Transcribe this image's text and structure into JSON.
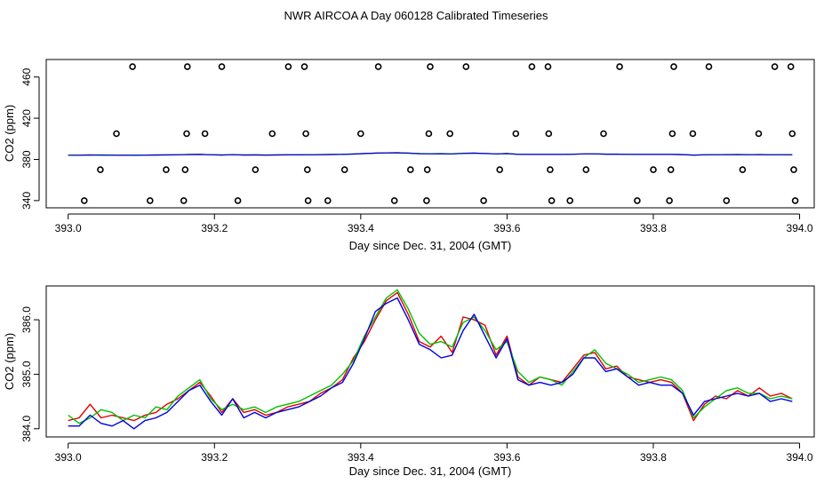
{
  "page_title": "NWR AIRCOA A  Day 060128  Calibrated Timeseries",
  "chart_data": [
    {
      "type": "scatter",
      "title": "",
      "xlabel": "Day since Dec. 31, 2004 (GMT)",
      "ylabel": "CO2 (ppm)",
      "xlim": [
        392.97,
        394.02
      ],
      "ylim": [
        333,
        477
      ],
      "x_ticks": [
        393.0,
        393.2,
        393.4,
        393.6,
        393.8,
        394.0
      ],
      "x_tick_labels": [
        "393.0",
        "393.2",
        "393.4",
        "393.6",
        "393.8",
        "394.0"
      ],
      "y_ticks": [
        340,
        380,
        420,
        460
      ],
      "y_tick_labels": [
        "340",
        "380",
        "420",
        "460"
      ],
      "points": [
        [
          393.022,
          340
        ],
        [
          393.044,
          370
        ],
        [
          393.066,
          405
        ],
        [
          393.088,
          470
        ],
        [
          393.112,
          340
        ],
        [
          393.134,
          370
        ],
        [
          393.158,
          340
        ],
        [
          393.16,
          370
        ],
        [
          393.162,
          405
        ],
        [
          393.163,
          470
        ],
        [
          393.187,
          405
        ],
        [
          393.21,
          470
        ],
        [
          393.232,
          340
        ],
        [
          393.256,
          370
        ],
        [
          393.279,
          405
        ],
        [
          393.301,
          470
        ],
        [
          393.323,
          470
        ],
        [
          393.325,
          405
        ],
        [
          393.327,
          370
        ],
        [
          393.328,
          340
        ],
        [
          393.355,
          340
        ],
        [
          393.378,
          370
        ],
        [
          393.4,
          405
        ],
        [
          393.424,
          470
        ],
        [
          393.446,
          340
        ],
        [
          393.468,
          370
        ],
        [
          393.49,
          340
        ],
        [
          393.491,
          370
        ],
        [
          393.493,
          405
        ],
        [
          393.495,
          470
        ],
        [
          393.522,
          405
        ],
        [
          393.544,
          470
        ],
        [
          393.568,
          340
        ],
        [
          393.59,
          370
        ],
        [
          393.612,
          405
        ],
        [
          393.634,
          470
        ],
        [
          393.656,
          470
        ],
        [
          393.657,
          405
        ],
        [
          393.659,
          370
        ],
        [
          393.661,
          340
        ],
        [
          393.686,
          340
        ],
        [
          393.708,
          370
        ],
        [
          393.732,
          405
        ],
        [
          393.754,
          470
        ],
        [
          393.778,
          340
        ],
        [
          393.8,
          370
        ],
        [
          393.822,
          340
        ],
        [
          393.824,
          370
        ],
        [
          393.826,
          405
        ],
        [
          393.828,
          470
        ],
        [
          393.854,
          405
        ],
        [
          393.876,
          470
        ],
        [
          393.9,
          340
        ],
        [
          393.922,
          370
        ],
        [
          393.944,
          405
        ],
        [
          393.966,
          470
        ],
        [
          393.988,
          470
        ],
        [
          393.99,
          405
        ],
        [
          393.992,
          370
        ],
        [
          393.994,
          340
        ]
      ],
      "series": [
        {
          "name": "red",
          "color": "#e00000"
        },
        {
          "name": "green",
          "color": "#00c000"
        },
        {
          "name": "blue",
          "color": "#0000e0"
        }
      ]
    },
    {
      "type": "line",
      "title": "",
      "xlabel": "Day since Dec. 31, 2004 (GMT)",
      "ylabel": "CO2 (ppm)",
      "xlim": [
        392.97,
        394.02
      ],
      "ylim": [
        383.85,
        386.62
      ],
      "x_ticks": [
        393.0,
        393.2,
        393.4,
        393.6,
        393.8,
        394.0
      ],
      "x_tick_labels": [
        "393.0",
        "393.2",
        "393.4",
        "393.6",
        "393.8",
        "394.0"
      ],
      "y_ticks": [
        384.0,
        385.0,
        386.0
      ],
      "y_tick_labels": [
        "384.0",
        "385.0",
        "386.0"
      ],
      "x": [
        393.0,
        393.015,
        393.03,
        393.045,
        393.06,
        393.075,
        393.09,
        393.105,
        393.12,
        393.135,
        393.15,
        393.165,
        393.18,
        393.195,
        393.21,
        393.225,
        393.24,
        393.255,
        393.27,
        393.285,
        393.3,
        393.315,
        393.33,
        393.345,
        393.36,
        393.375,
        393.39,
        393.405,
        393.42,
        393.435,
        393.45,
        393.465,
        393.48,
        393.495,
        393.51,
        393.525,
        393.54,
        393.555,
        393.57,
        393.585,
        393.6,
        393.615,
        393.63,
        393.645,
        393.66,
        393.675,
        393.69,
        393.705,
        393.72,
        393.735,
        393.75,
        393.765,
        393.78,
        393.795,
        393.81,
        393.825,
        393.84,
        393.855,
        393.87,
        393.885,
        393.9,
        393.915,
        393.93,
        393.945,
        393.96,
        393.975,
        393.99
      ],
      "series": [
        {
          "name": "red",
          "color": "#e00000",
          "values": [
            384.15,
            384.2,
            384.45,
            384.2,
            384.25,
            384.2,
            384.15,
            384.25,
            384.3,
            384.45,
            384.55,
            384.7,
            384.85,
            384.6,
            384.3,
            384.55,
            384.3,
            384.35,
            384.25,
            384.3,
            384.4,
            384.45,
            384.5,
            384.65,
            384.75,
            384.9,
            385.3,
            385.6,
            386.0,
            386.35,
            386.5,
            386.1,
            385.6,
            385.5,
            385.7,
            385.4,
            386.05,
            386.0,
            385.9,
            385.35,
            385.7,
            384.95,
            384.8,
            384.95,
            384.9,
            384.85,
            385.1,
            385.35,
            385.4,
            385.1,
            385.15,
            384.95,
            384.9,
            384.85,
            384.9,
            384.85,
            384.65,
            384.15,
            384.45,
            384.6,
            384.55,
            384.7,
            384.6,
            384.75,
            384.6,
            384.65,
            384.55
          ]
        },
        {
          "name": "green",
          "color": "#00c000",
          "values": [
            384.25,
            384.1,
            384.2,
            384.35,
            384.3,
            384.15,
            384.25,
            384.2,
            384.4,
            384.35,
            384.6,
            384.75,
            384.9,
            384.55,
            384.35,
            384.45,
            384.35,
            384.4,
            384.3,
            384.4,
            384.45,
            384.5,
            384.6,
            384.7,
            384.8,
            385.0,
            385.25,
            385.7,
            386.05,
            386.4,
            386.55,
            386.2,
            385.75,
            385.55,
            385.6,
            385.5,
            385.95,
            386.05,
            385.8,
            385.45,
            385.6,
            385.05,
            384.85,
            384.95,
            384.9,
            384.8,
            385.05,
            385.3,
            385.45,
            385.2,
            385.1,
            385.0,
            384.85,
            384.9,
            384.95,
            384.9,
            384.7,
            384.2,
            384.4,
            384.55,
            384.7,
            384.75,
            384.65,
            384.65,
            384.55,
            384.6,
            384.55
          ]
        },
        {
          "name": "blue",
          "color": "#0000e0",
          "values": [
            384.05,
            384.05,
            384.25,
            384.1,
            384.05,
            384.15,
            384.0,
            384.15,
            384.2,
            384.3,
            384.5,
            384.7,
            384.8,
            384.5,
            384.25,
            384.55,
            384.2,
            384.3,
            384.2,
            384.3,
            384.35,
            384.4,
            384.5,
            384.6,
            384.75,
            384.85,
            385.2,
            385.65,
            386.15,
            386.3,
            386.4,
            386.0,
            385.55,
            385.45,
            385.3,
            385.35,
            385.8,
            386.1,
            385.7,
            385.3,
            385.65,
            384.9,
            384.8,
            384.85,
            384.8,
            384.85,
            385.0,
            385.3,
            385.3,
            385.05,
            385.1,
            384.95,
            384.8,
            384.85,
            384.8,
            384.8,
            384.65,
            384.25,
            384.5,
            384.55,
            384.6,
            384.65,
            384.6,
            384.65,
            384.5,
            384.55,
            384.5
          ]
        }
      ]
    }
  ]
}
